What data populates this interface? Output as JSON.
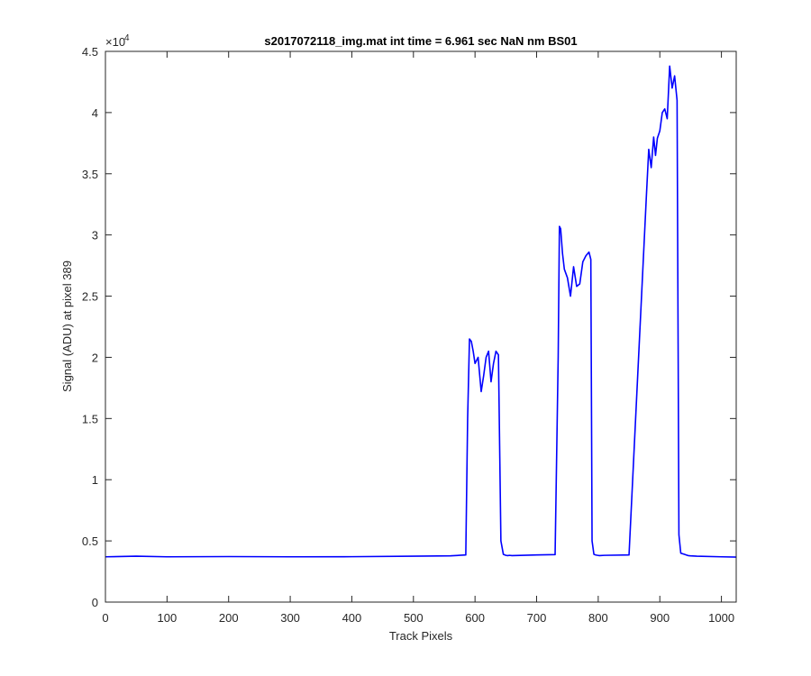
{
  "chart_data": {
    "type": "line",
    "title": "s2017072118_img.mat int time = 6.961 sec  NaN nm BS01",
    "xlabel": "Track Pixels",
    "ylabel": "Signal (ADU) at pixel 389",
    "xlim": [
      0,
      1024
    ],
    "ylim": [
      0,
      45000
    ],
    "x_ticks": [
      0,
      100,
      200,
      300,
      400,
      500,
      600,
      700,
      800,
      900,
      1000
    ],
    "y_ticks": [
      0,
      0.5,
      1,
      1.5,
      2,
      2.5,
      3,
      3.5,
      4,
      4.5
    ],
    "y_exponent_base": "×10",
    "y_exponent_power": "4",
    "y_tick_multiplier": 10000,
    "grid": false,
    "series": [
      {
        "color": "#0000ff",
        "x": [
          0,
          50,
          100,
          200,
          300,
          400,
          500,
          560,
          585,
          588,
          591,
          594,
          597,
          600,
          605,
          610,
          614,
          618,
          622,
          626,
          630,
          634,
          638,
          642,
          646,
          650,
          653,
          656,
          660,
          700,
          730,
          735,
          737,
          739,
          742,
          745,
          750,
          755,
          760,
          765,
          770,
          775,
          780,
          785,
          788,
          790,
          793,
          796,
          799,
          802,
          810,
          850,
          878,
          882,
          886,
          890,
          893,
          896,
          900,
          904,
          908,
          912,
          916,
          920,
          924,
          928,
          931,
          934,
          937,
          940,
          943,
          946,
          950,
          960,
          1000,
          1024
        ],
        "y": [
          3700,
          3750,
          3700,
          3720,
          3700,
          3710,
          3750,
          3780,
          3850,
          15000,
          21500,
          21300,
          20500,
          19500,
          20000,
          17200,
          18500,
          20000,
          20500,
          18000,
          19500,
          20500,
          20200,
          5000,
          3900,
          3820,
          3800,
          3820,
          3800,
          3850,
          3880,
          20000,
          30700,
          30500,
          28500,
          27200,
          26500,
          25000,
          27400,
          25800,
          26000,
          27800,
          28300,
          28600,
          28000,
          5000,
          3900,
          3850,
          3820,
          3800,
          3820,
          3850,
          33000,
          37000,
          35500,
          38000,
          36500,
          37900,
          38500,
          40000,
          40300,
          39500,
          43800,
          42000,
          43000,
          41000,
          5500,
          4000,
          3950,
          3900,
          3850,
          3800,
          3780,
          3750,
          3700,
          3680
        ]
      }
    ]
  }
}
